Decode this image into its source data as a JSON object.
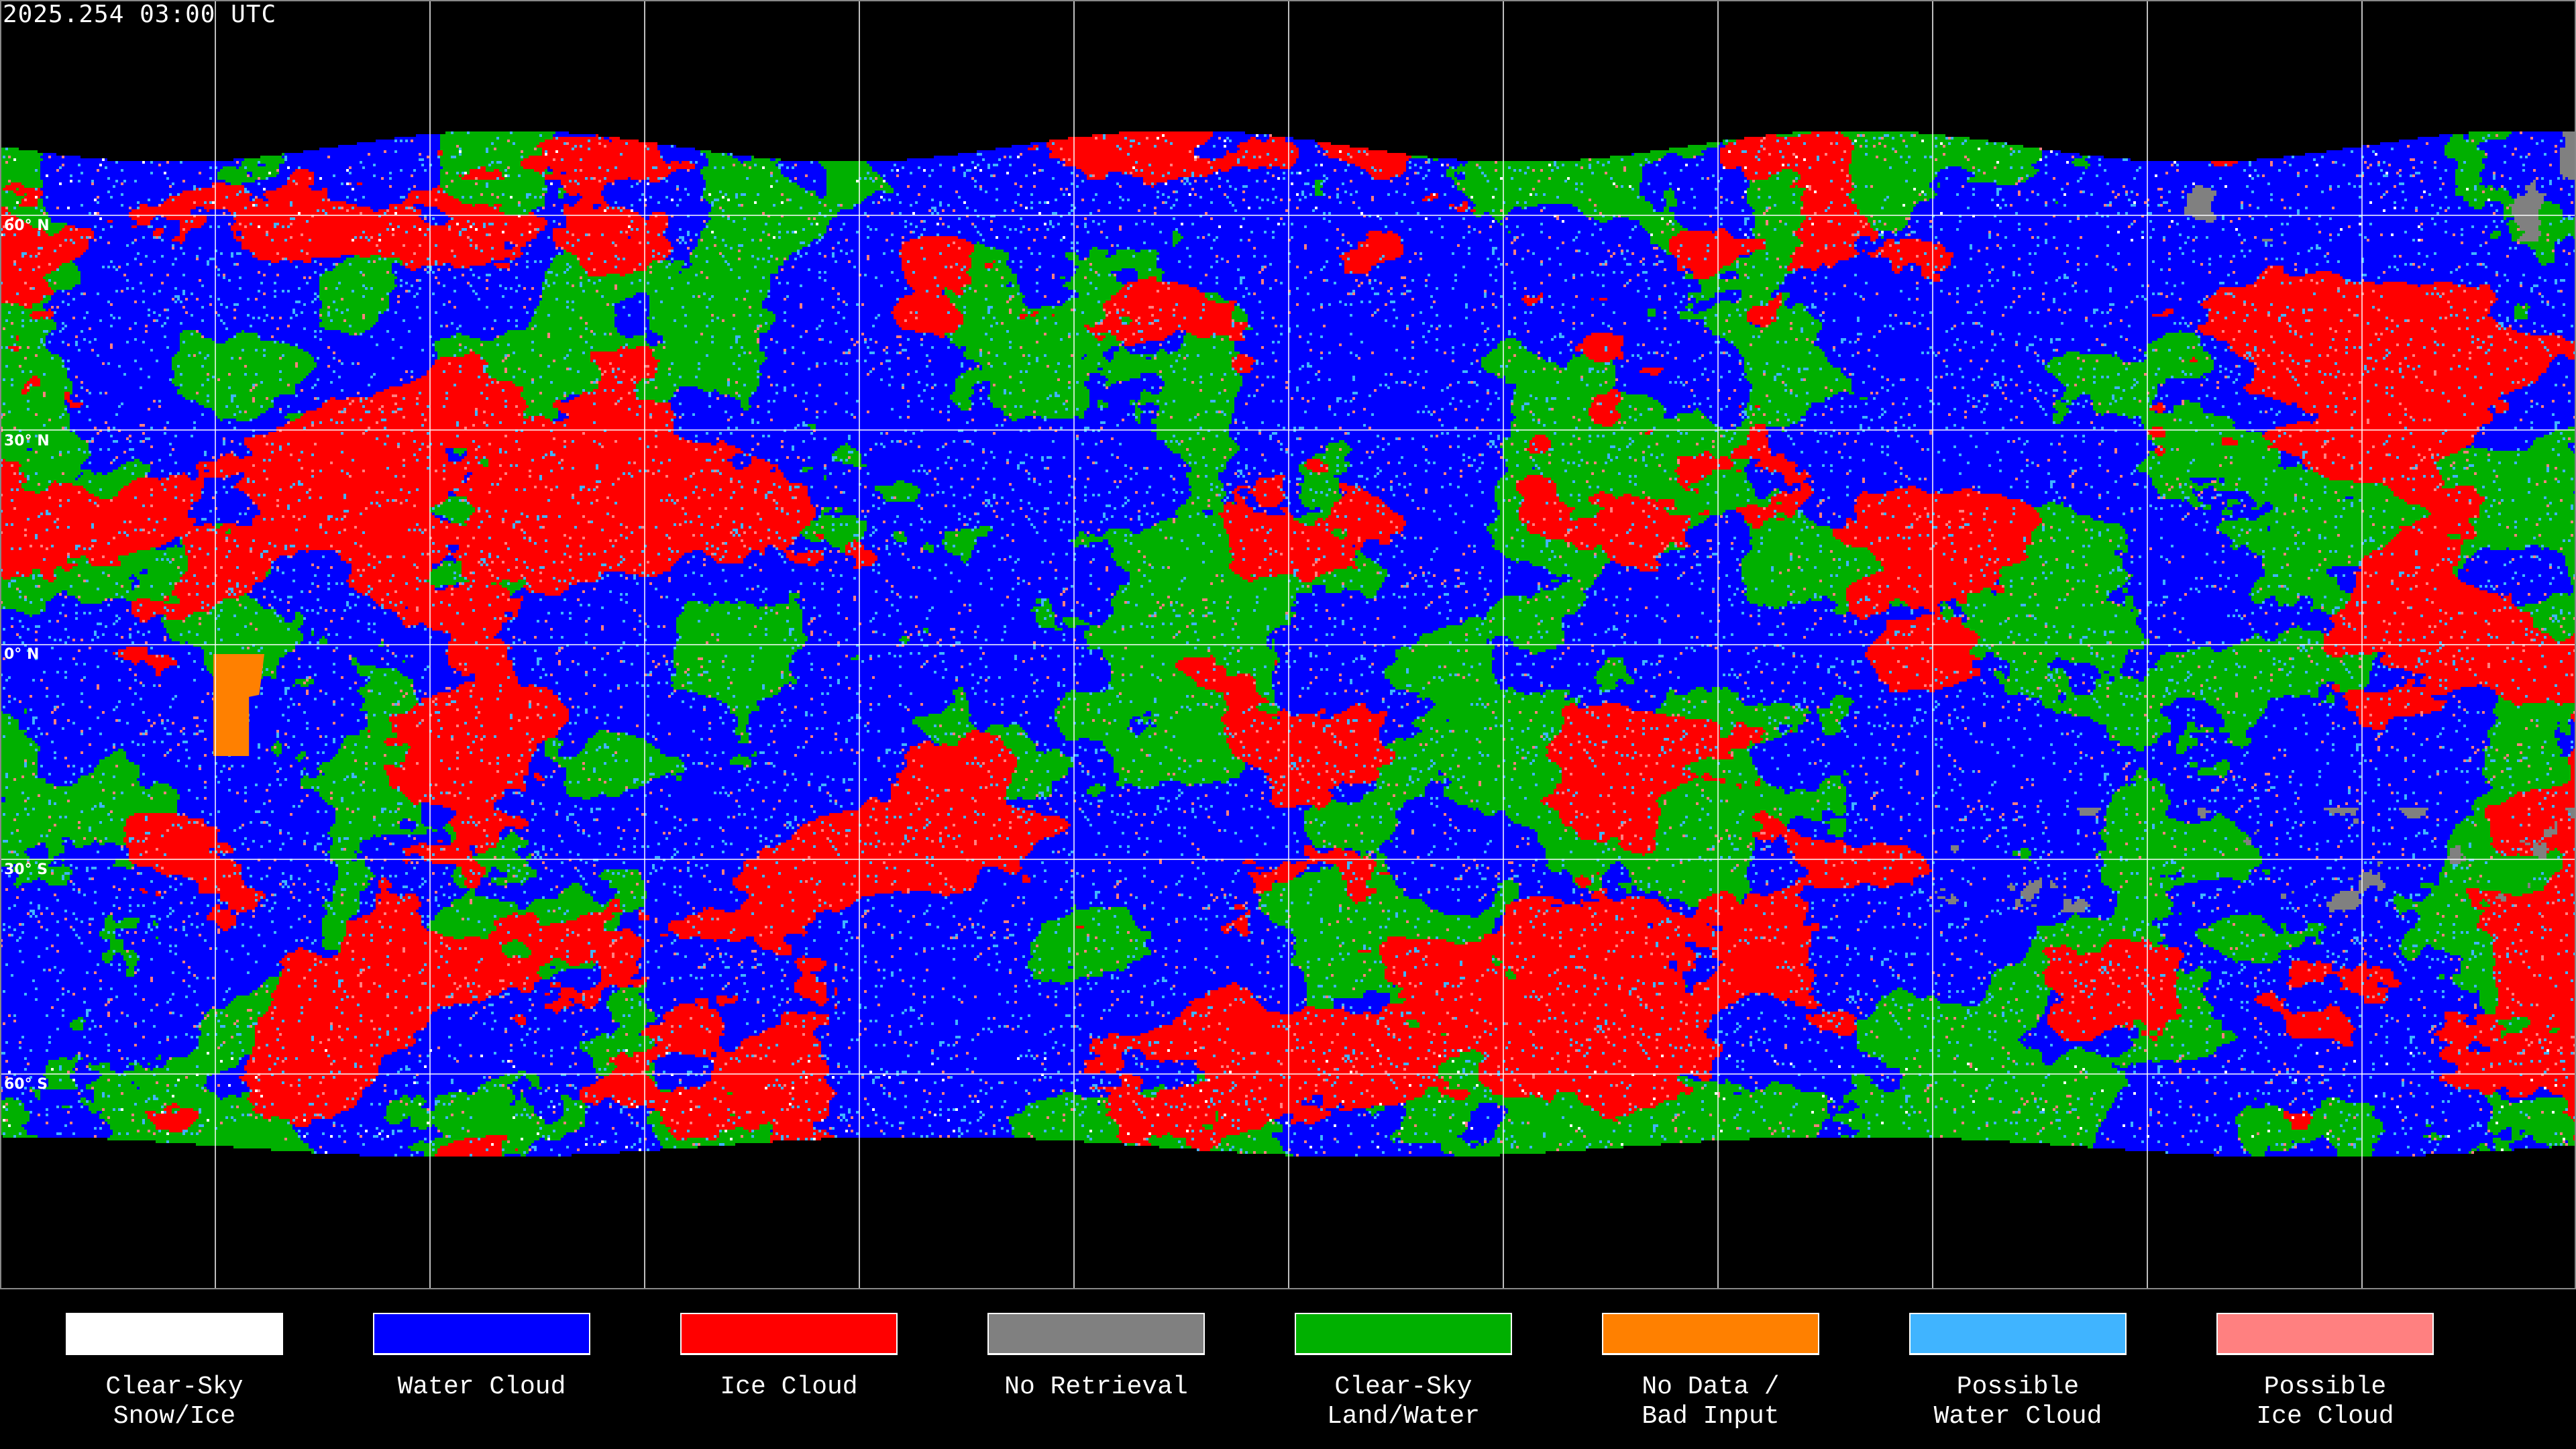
{
  "timestamp": "2025.254 03:00 UTC",
  "latitude_labels": [
    "60° N",
    "30° N",
    "0° N",
    "30° S",
    "60° S"
  ],
  "map": {
    "projection": "equirectangular",
    "graticule_spacing_degrees": 30,
    "background": "#000000",
    "coastline_color": "#ffffff"
  },
  "legend": [
    {
      "line1": "Clear-Sky",
      "line2": "Snow/Ice",
      "color": "#ffffff"
    },
    {
      "line1": "Water Cloud",
      "line2": "",
      "color": "#0000ff"
    },
    {
      "line1": "Ice Cloud",
      "line2": "",
      "color": "#ff0000"
    },
    {
      "line1": "No Retrieval",
      "line2": "",
      "color": "#808080"
    },
    {
      "line1": "Clear-Sky",
      "line2": "Land/Water",
      "color": "#00b000"
    },
    {
      "line1": "No Data /",
      "line2": "Bad Input",
      "color": "#ff8000"
    },
    {
      "line1": "Possible",
      "line2": "Water Cloud",
      "color": "#40b4ff"
    },
    {
      "line1": "Possible",
      "line2": "Ice Cloud",
      "color": "#ff8080"
    }
  ]
}
